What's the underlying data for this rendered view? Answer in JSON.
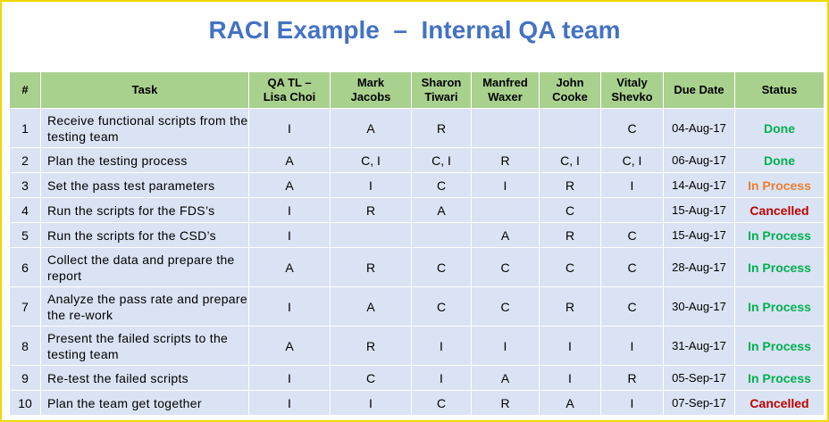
{
  "title": "RACI Example  –  Internal QA team",
  "columns": [
    "#",
    "Task",
    "QA TL –\nLisa Choi",
    "Mark\nJacobs",
    "Sharon\nTiwari",
    "Manfred\nWaxer",
    "John\nCooke",
    "Vitaly\nShevko",
    "Due Date",
    "Status"
  ],
  "rows": [
    {
      "num": "1",
      "task": "Receive functional scripts from the testing team",
      "roles": [
        "I",
        "A",
        "R",
        "",
        "",
        "C"
      ],
      "due": "04-Aug-17",
      "status": "Done",
      "status_color": "#00b050"
    },
    {
      "num": "2",
      "task": "Plan the testing process",
      "roles": [
        "A",
        "C, I",
        "C, I",
        "R",
        "C, I",
        "C, I"
      ],
      "due": "06-Aug-17",
      "status": "Done",
      "status_color": "#00b050"
    },
    {
      "num": "3",
      "task": "Set the pass test parameters",
      "roles": [
        "A",
        "I",
        "C",
        "I",
        "R",
        "I"
      ],
      "due": "14-Aug-17",
      "status": "In Process",
      "status_color": "#ed7d31"
    },
    {
      "num": "4",
      "task": "Run the scripts for the FDS’s",
      "roles": [
        "I",
        "R",
        "A",
        "",
        "C",
        ""
      ],
      "due": "15-Aug-17",
      "status": "Cancelled",
      "status_color": "#c00000"
    },
    {
      "num": "5",
      "task": "Run the scripts for the CSD’s",
      "roles": [
        "I",
        "",
        "",
        "A",
        "R",
        "C"
      ],
      "due": "15-Aug-17",
      "status": "In Process",
      "status_color": "#00b050"
    },
    {
      "num": "6",
      "task": "Collect the data and prepare the report",
      "roles": [
        "A",
        "R",
        "C",
        "C",
        "C",
        "C"
      ],
      "due": "28-Aug-17",
      "status": "In Process",
      "status_color": "#00b050"
    },
    {
      "num": "7",
      "task": "Analyze the pass rate and prepare the re-work",
      "roles": [
        "I",
        "A",
        "C",
        "C",
        "R",
        "C"
      ],
      "due": "30-Aug-17",
      "status": "In Process",
      "status_color": "#00b050"
    },
    {
      "num": "8",
      "task": "Present the failed scripts to the testing team",
      "roles": [
        "A",
        "R",
        "I",
        "I",
        "I",
        "I"
      ],
      "due": "31-Aug-17",
      "status": "In Process",
      "status_color": "#00b050"
    },
    {
      "num": "9",
      "task": "Re-test the failed scripts",
      "roles": [
        "I",
        "C",
        "I",
        "A",
        "I",
        "R"
      ],
      "due": "05-Sep-17",
      "status": "In Process",
      "status_color": "#00b050"
    },
    {
      "num": "10",
      "task": "Plan the team get together",
      "roles": [
        "I",
        "I",
        "C",
        "R",
        "A",
        "I"
      ],
      "due": "07-Sep-17",
      "status": "Cancelled",
      "status_color": "#c00000"
    }
  ]
}
